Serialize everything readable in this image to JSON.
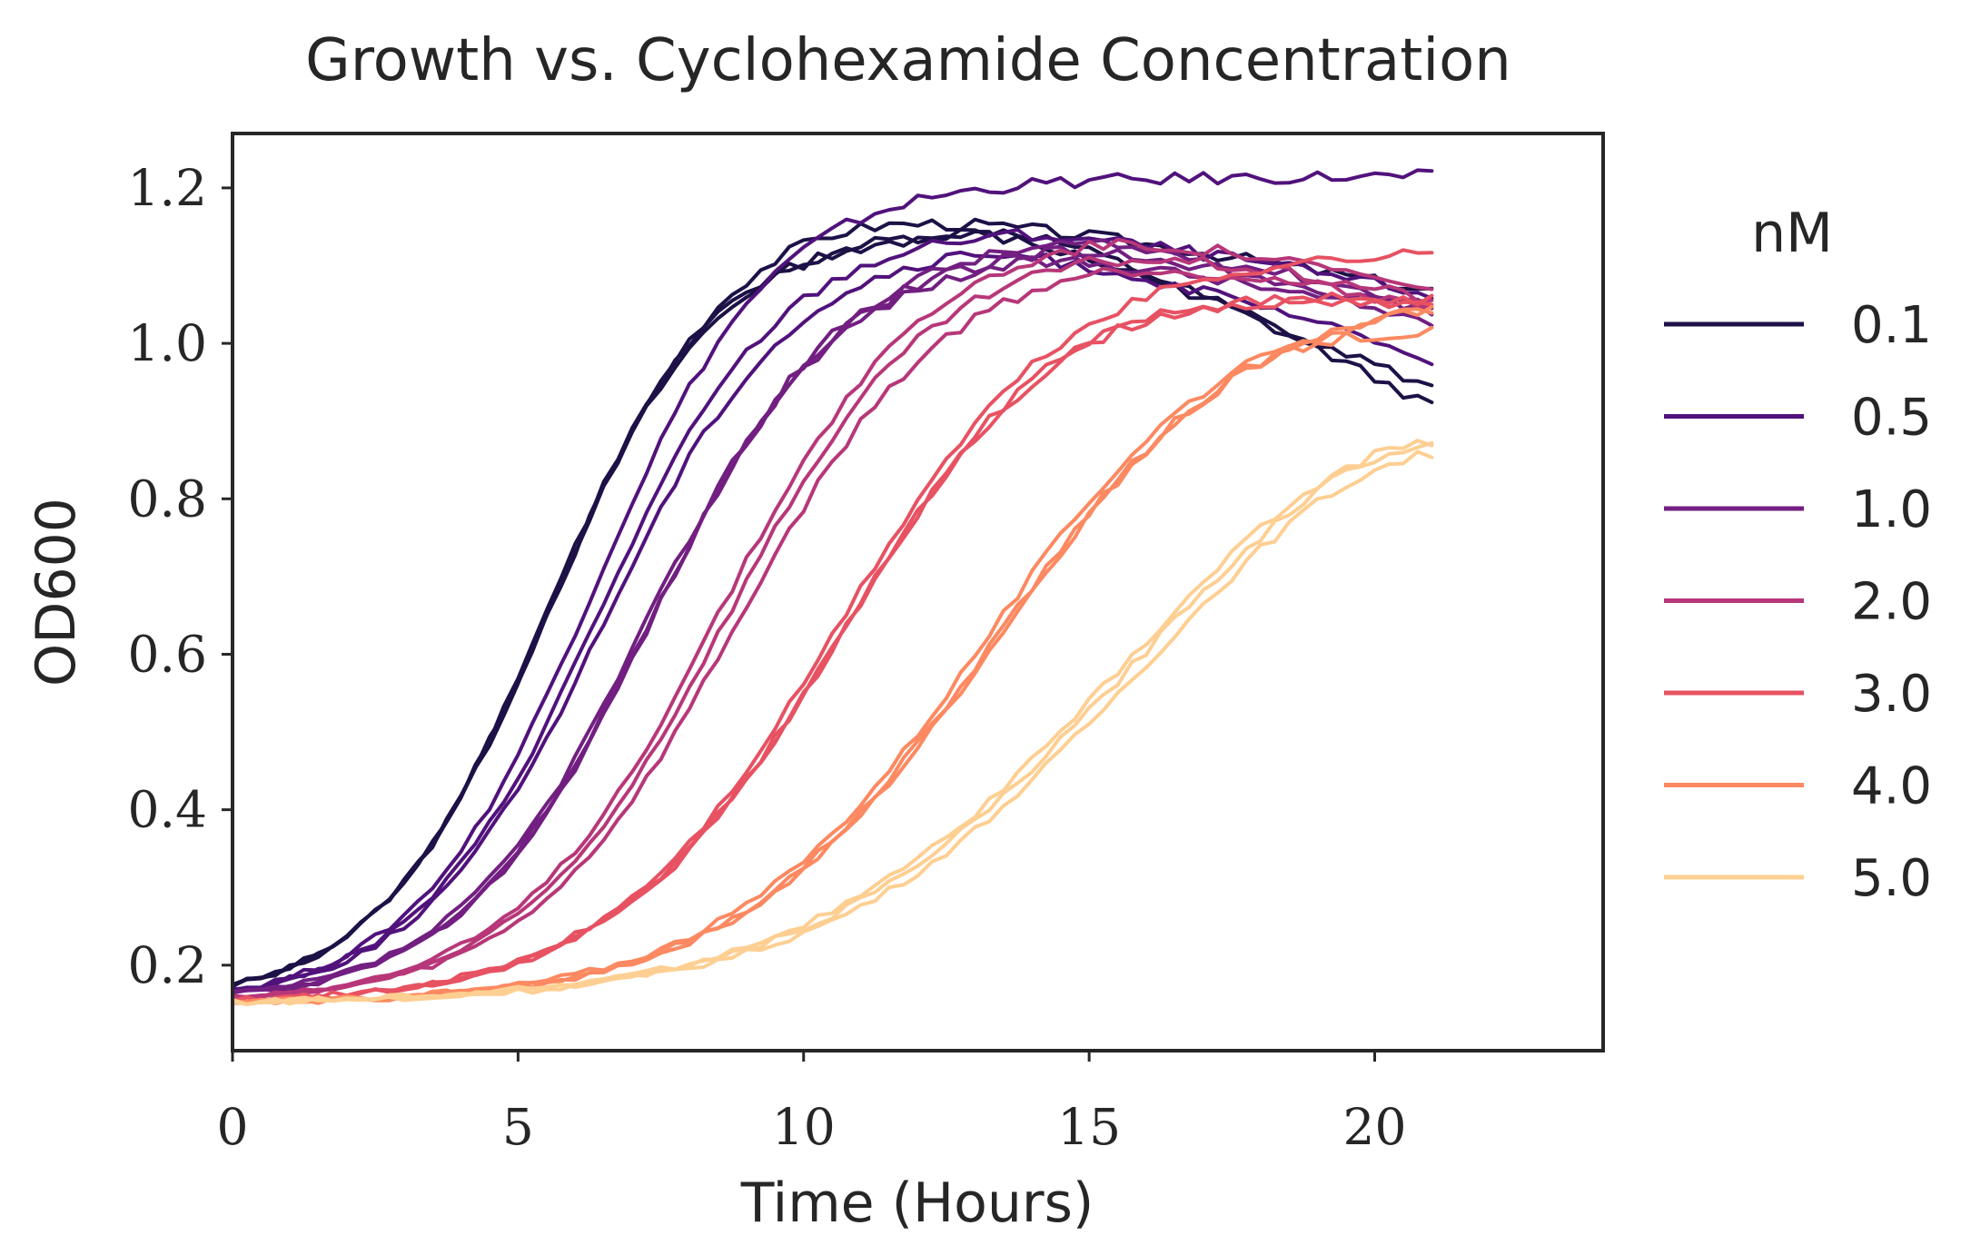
{
  "chart_data": {
    "type": "line",
    "title": "Growth vs. Cyclohexamide Concentration",
    "xlabel": "Time (Hours)",
    "ylabel": "OD600",
    "xlim": [
      0,
      24
    ],
    "ylim": [
      0.09,
      1.27
    ],
    "xticks": [
      0,
      5,
      10,
      15,
      20
    ],
    "xtick_labels": [
      "0",
      "5",
      "10",
      "15",
      "20"
    ],
    "yticks": [
      0.2,
      0.4,
      0.6,
      0.8,
      1.0,
      1.2
    ],
    "ytick_labels": [
      "0.2",
      "0.4",
      "0.6",
      "0.8",
      "1.0",
      "1.2"
    ],
    "grid": false,
    "legend": {
      "title": "nM",
      "placement": "outside-right",
      "entries": [
        "0.1",
        "0.5",
        "1.0",
        "2.0",
        "3.0",
        "4.0",
        "5.0"
      ]
    },
    "replicates_per_group": 3,
    "time_end": 21.2,
    "groups": [
      {
        "label": "0.1",
        "color": "#1d1147",
        "replicates": [
          {
            "max": 1.18,
            "midpoint": 5.6,
            "rate": 0.66,
            "decline_start": 10.3,
            "end": 1.065
          },
          {
            "max": 1.145,
            "midpoint": 5.45,
            "rate": 0.68,
            "decline_start": 13.0,
            "end": 0.935
          },
          {
            "max": 1.15,
            "midpoint": 5.5,
            "rate": 0.67,
            "decline_start": 13.5,
            "end": 0.91
          }
        ]
      },
      {
        "label": "0.5",
        "color": "#51127c",
        "replicates": [
          {
            "max": 1.21,
            "midpoint": 6.3,
            "rate": 0.64,
            "decline_start": 21.5,
            "end": 1.215
          },
          {
            "max": 1.13,
            "midpoint": 6.5,
            "rate": 0.62,
            "decline_start": 13.0,
            "end": 0.975
          },
          {
            "max": 1.15,
            "midpoint": 6.4,
            "rate": 0.63,
            "decline_start": 13.5,
            "end": 1.06
          }
        ]
      },
      {
        "label": "1.0",
        "color": "#721f81",
        "replicates": [
          {
            "max": 1.12,
            "midpoint": 7.2,
            "rate": 0.6,
            "decline_start": 14.0,
            "end": 1.025
          },
          {
            "max": 1.14,
            "midpoint": 7.35,
            "rate": 0.6,
            "decline_start": 14.5,
            "end": 1.045
          },
          {
            "max": 1.13,
            "midpoint": 7.3,
            "rate": 0.6,
            "decline_start": 14.5,
            "end": 1.035
          }
        ]
      },
      {
        "label": "2.0",
        "color": "#b73779",
        "replicates": [
          {
            "max": 1.13,
            "midpoint": 8.6,
            "rate": 0.56,
            "decline_start": 15.0,
            "end": 1.055
          },
          {
            "max": 1.12,
            "midpoint": 8.8,
            "rate": 0.55,
            "decline_start": 15.0,
            "end": 1.045
          },
          {
            "max": 1.15,
            "midpoint": 8.5,
            "rate": 0.56,
            "decline_start": 15.0,
            "end": 1.065
          }
        ]
      },
      {
        "label": "3.0",
        "color": "#e75263",
        "replicates": [
          {
            "max": 1.12,
            "midpoint": 10.6,
            "rate": 0.5,
            "decline_start": 21.5,
            "end": 1.12
          },
          {
            "max": 1.11,
            "midpoint": 10.7,
            "rate": 0.5,
            "decline_start": 21.5,
            "end": 1.05
          },
          {
            "max": 1.1,
            "midpoint": 10.65,
            "rate": 0.5,
            "decline_start": 21.5,
            "end": 1.06
          }
        ]
      },
      {
        "label": "4.0",
        "color": "#fc8961",
        "replicates": [
          {
            "max": 1.09,
            "midpoint": 13.2,
            "rate": 0.44,
            "decline_start": 21.5,
            "end": 1.04
          },
          {
            "max": 1.09,
            "midpoint": 13.4,
            "rate": 0.44,
            "decline_start": 21.5,
            "end": 1.07
          },
          {
            "max": 1.08,
            "midpoint": 13.3,
            "rate": 0.44,
            "decline_start": 21.5,
            "end": 1.075
          }
        ]
      },
      {
        "label": "5.0",
        "color": "#fecf92",
        "replicates": [
          {
            "max": 1.02,
            "midpoint": 15.6,
            "rate": 0.36,
            "decline_start": 21.5,
            "end": 0.955
          },
          {
            "max": 1.01,
            "midpoint": 15.9,
            "rate": 0.36,
            "decline_start": 21.5,
            "end": 0.94
          },
          {
            "max": 1.02,
            "midpoint": 15.75,
            "rate": 0.36,
            "decline_start": 21.5,
            "end": 0.96
          }
        ]
      }
    ]
  }
}
